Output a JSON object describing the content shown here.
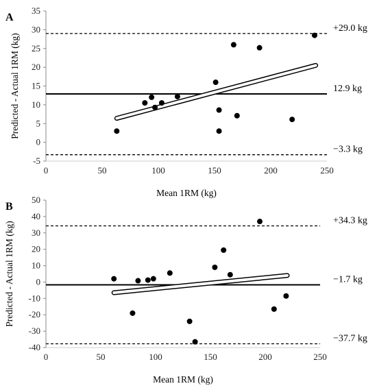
{
  "chart_data": [
    {
      "type": "scatter",
      "panel_label": "A",
      "xlabel": "Mean 1RM (kg)",
      "ylabel": "Predicted - Actual 1RM (kg)",
      "xlim": [
        0,
        250
      ],
      "ylim": [
        -5,
        35
      ],
      "xticks": [
        0,
        50,
        100,
        150,
        200,
        250
      ],
      "yticks": [
        -5,
        0,
        5,
        10,
        15,
        20,
        25,
        30,
        35
      ],
      "points": [
        {
          "x": 63,
          "y": 3
        },
        {
          "x": 88,
          "y": 10.5
        },
        {
          "x": 94,
          "y": 12
        },
        {
          "x": 97,
          "y": 9.3
        },
        {
          "x": 103,
          "y": 10.5
        },
        {
          "x": 117,
          "y": 12.2
        },
        {
          "x": 151,
          "y": 16
        },
        {
          "x": 154,
          "y": 8.6
        },
        {
          "x": 154,
          "y": 3
        },
        {
          "x": 167,
          "y": 26
        },
        {
          "x": 170,
          "y": 7.1
        },
        {
          "x": 190,
          "y": 25.2
        },
        {
          "x": 219,
          "y": 6.1
        },
        {
          "x": 239,
          "y": 28.5
        }
      ],
      "mean_line": {
        "y": 12.9,
        "label": "12.9 kg"
      },
      "upper_loa": {
        "y": 29.0,
        "label": "+29.0 kg"
      },
      "lower_loa": {
        "y": -3.3,
        "label": "−3.3 kg"
      },
      "trend_line": {
        "x": [
          63,
          240
        ],
        "y": [
          6.4,
          20.5
        ]
      }
    },
    {
      "type": "scatter",
      "panel_label": "B",
      "xlabel": "Mean 1RM (kg)",
      "ylabel": "Predicted - Actual 1RM (kg)",
      "xlim": [
        0,
        250
      ],
      "ylim": [
        -40,
        50
      ],
      "xticks": [
        0,
        50,
        100,
        150,
        200,
        250
      ],
      "yticks": [
        -40,
        -30,
        -20,
        -10,
        0,
        10,
        20,
        30,
        40,
        50
      ],
      "points": [
        {
          "x": 62,
          "y": 2
        },
        {
          "x": 79,
          "y": -19
        },
        {
          "x": 84,
          "y": 0.8
        },
        {
          "x": 93,
          "y": 1.2
        },
        {
          "x": 98,
          "y": 2
        },
        {
          "x": 113,
          "y": 5.5
        },
        {
          "x": 131,
          "y": -24
        },
        {
          "x": 136,
          "y": -36.5
        },
        {
          "x": 154,
          "y": 9
        },
        {
          "x": 162,
          "y": 19.5
        },
        {
          "x": 168,
          "y": 4.5
        },
        {
          "x": 195,
          "y": 37
        },
        {
          "x": 208,
          "y": -16.5
        },
        {
          "x": 219,
          "y": -8.5
        }
      ],
      "mean_line": {
        "y": -1.7,
        "label": "−1.7 kg"
      },
      "upper_loa": {
        "y": 34.3,
        "label": "+34.3 kg"
      },
      "lower_loa": {
        "y": -37.7,
        "label": "−37.7 kg"
      },
      "trend_line": {
        "x": [
          62,
          220
        ],
        "y": [
          -6.5,
          4.0
        ]
      }
    }
  ]
}
